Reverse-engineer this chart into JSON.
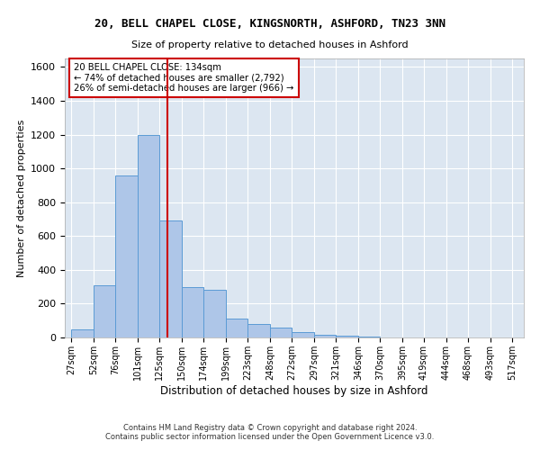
{
  "title": "20, BELL CHAPEL CLOSE, KINGSNORTH, ASHFORD, TN23 3NN",
  "subtitle": "Size of property relative to detached houses in Ashford",
  "xlabel": "Distribution of detached houses by size in Ashford",
  "ylabel": "Number of detached properties",
  "footer_line1": "Contains HM Land Registry data © Crown copyright and database right 2024.",
  "footer_line2": "Contains public sector information licensed under the Open Government Licence v3.0.",
  "annotation_line1": "20 BELL CHAPEL CLOSE: 134sqm",
  "annotation_line2": "← 74% of detached houses are smaller (2,792)",
  "annotation_line3": "26% of semi-detached houses are larger (966) →",
  "property_size": 134,
  "bar_left_edges": [
    27,
    52,
    76,
    101,
    125,
    150,
    174,
    199,
    223,
    248,
    272,
    297,
    321,
    346,
    370,
    395,
    419,
    444,
    468,
    493
  ],
  "bar_widths": [
    25,
    24,
    25,
    24,
    25,
    24,
    25,
    24,
    25,
    24,
    25,
    24,
    25,
    24,
    25,
    24,
    25,
    24,
    25,
    24
  ],
  "bar_heights": [
    50,
    310,
    960,
    1200,
    690,
    300,
    280,
    110,
    80,
    60,
    30,
    15,
    8,
    4,
    2,
    1,
    1,
    0,
    0,
    1
  ],
  "bar_color": "#aec6e8",
  "bar_edge_color": "#5b9bd5",
  "vline_color": "#cc0000",
  "vline_x": 134,
  "ylim": [
    0,
    1650
  ],
  "yticks": [
    0,
    200,
    400,
    600,
    800,
    1000,
    1200,
    1400,
    1600
  ],
  "bg_color": "#dce6f1",
  "annotation_box_color": "#ffffff",
  "annotation_box_edge": "#cc0000",
  "tick_labels": [
    "27sqm",
    "52sqm",
    "76sqm",
    "101sqm",
    "125sqm",
    "150sqm",
    "174sqm",
    "199sqm",
    "223sqm",
    "248sqm",
    "272sqm",
    "297sqm",
    "321sqm",
    "346sqm",
    "370sqm",
    "395sqm",
    "419sqm",
    "444sqm",
    "468sqm",
    "493sqm",
    "517sqm"
  ]
}
